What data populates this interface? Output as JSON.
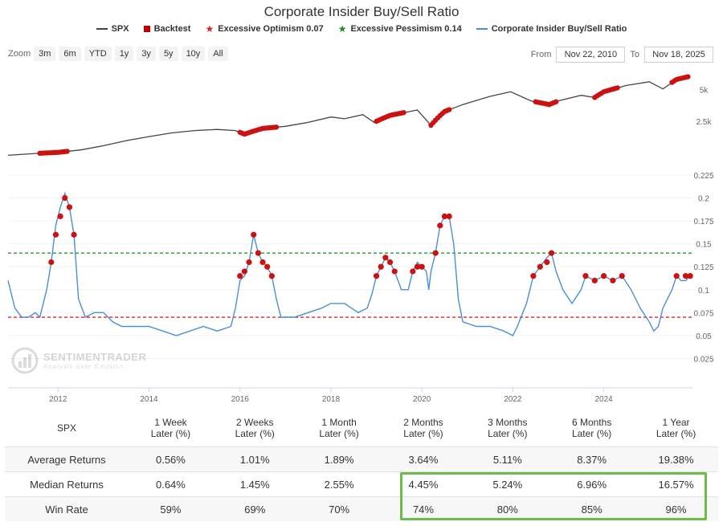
{
  "title": "Corporate Insider Buy/Sell Ratio",
  "legend": [
    {
      "label": "SPX",
      "kind": "line",
      "color": "#444444"
    },
    {
      "label": "Backtest",
      "kind": "square",
      "color": "#c00000"
    },
    {
      "label": "Excessive Optimism 0.07",
      "kind": "star",
      "color": "#e02020"
    },
    {
      "label": "Excessive Pessimism 0.14",
      "kind": "star",
      "color": "#1a8a1a"
    },
    {
      "label": "Corporate Insider Buy/Sell Ratio",
      "kind": "line",
      "color": "#4a8fd4"
    }
  ],
  "zoom": {
    "label": "Zoom",
    "buttons": [
      "3m",
      "6m",
      "YTD",
      "1y",
      "3y",
      "5y",
      "10y",
      "All"
    ]
  },
  "range": {
    "from_label": "From",
    "from_value": "Nov 22, 2010",
    "to_label": "To",
    "to_value": "Nov 18, 2025"
  },
  "watermark": {
    "title": "SENTIMENTRADER",
    "subtitle": "Analysis over Emotion"
  },
  "chart_data": {
    "type": "line",
    "x_range": [
      2010.9,
      2025.95
    ],
    "x_ticks": [
      2012,
      2014,
      2016,
      2018,
      2020,
      2022,
      2024
    ],
    "spx": {
      "name": "SPX",
      "axis_ticks": [
        {
          "value": 5000,
          "label": "5k"
        },
        {
          "value": 2500,
          "label": "2.5k"
        }
      ],
      "points": [
        [
          2010.9,
          1200
        ],
        [
          2011.5,
          1250
        ],
        [
          2012.0,
          1280
        ],
        [
          2012.5,
          1350
        ],
        [
          2013.0,
          1480
        ],
        [
          2013.5,
          1650
        ],
        [
          2014.0,
          1800
        ],
        [
          2014.5,
          1950
        ],
        [
          2015.0,
          2050
        ],
        [
          2015.5,
          2100
        ],
        [
          2015.9,
          2050
        ],
        [
          2016.1,
          1900
        ],
        [
          2016.5,
          2150
        ],
        [
          2017.0,
          2250
        ],
        [
          2017.5,
          2450
        ],
        [
          2018.0,
          2750
        ],
        [
          2018.3,
          2650
        ],
        [
          2018.7,
          2900
        ],
        [
          2018.95,
          2450
        ],
        [
          2019.3,
          2850
        ],
        [
          2019.9,
          3200
        ],
        [
          2020.2,
          2300
        ],
        [
          2020.5,
          3100
        ],
        [
          2020.9,
          3600
        ],
        [
          2021.5,
          4300
        ],
        [
          2021.95,
          4750
        ],
        [
          2022.4,
          3900
        ],
        [
          2022.8,
          3600
        ],
        [
          2023.0,
          3900
        ],
        [
          2023.5,
          4400
        ],
        [
          2023.8,
          4200
        ],
        [
          2024.0,
          4750
        ],
        [
          2024.5,
          5450
        ],
        [
          2025.0,
          5900
        ],
        [
          2025.3,
          5050
        ],
        [
          2025.6,
          6200
        ],
        [
          2025.9,
          6650
        ]
      ]
    },
    "backtest_spx_windows": [
      [
        2011.6,
        2012.2
      ],
      [
        2016.0,
        2016.8
      ],
      [
        2019.0,
        2019.6
      ],
      [
        2020.2,
        2020.6
      ],
      [
        2022.5,
        2022.95
      ],
      [
        2023.8,
        2024.3
      ],
      [
        2025.5,
        2025.85
      ]
    ],
    "ratio": {
      "name": "Corporate Insider Buy/Sell Ratio",
      "y_ticks": [
        0.025,
        0.05,
        0.075,
        0.1,
        0.125,
        0.15,
        0.175,
        0.2,
        0.225
      ],
      "points": [
        [
          2010.9,
          0.11
        ],
        [
          2011.05,
          0.08
        ],
        [
          2011.2,
          0.07
        ],
        [
          2011.35,
          0.07
        ],
        [
          2011.5,
          0.075
        ],
        [
          2011.6,
          0.07
        ],
        [
          2011.75,
          0.1
        ],
        [
          2011.85,
          0.13
        ],
        [
          2011.95,
          0.17
        ],
        [
          2012.05,
          0.19
        ],
        [
          2012.15,
          0.205
        ],
        [
          2012.25,
          0.19
        ],
        [
          2012.35,
          0.16
        ],
        [
          2012.45,
          0.09
        ],
        [
          2012.6,
          0.07
        ],
        [
          2012.8,
          0.075
        ],
        [
          2013.0,
          0.075
        ],
        [
          2013.2,
          0.065
        ],
        [
          2013.4,
          0.06
        ],
        [
          2013.7,
          0.06
        ],
        [
          2014.0,
          0.06
        ],
        [
          2014.3,
          0.055
        ],
        [
          2014.6,
          0.05
        ],
        [
          2014.9,
          0.055
        ],
        [
          2015.2,
          0.06
        ],
        [
          2015.5,
          0.055
        ],
        [
          2015.8,
          0.06
        ],
        [
          2015.9,
          0.08
        ],
        [
          2016.0,
          0.11
        ],
        [
          2016.1,
          0.115
        ],
        [
          2016.2,
          0.13
        ],
        [
          2016.3,
          0.16
        ],
        [
          2016.4,
          0.14
        ],
        [
          2016.5,
          0.13
        ],
        [
          2016.6,
          0.125
        ],
        [
          2016.7,
          0.115
        ],
        [
          2016.8,
          0.09
        ],
        [
          2016.9,
          0.07
        ],
        [
          2017.2,
          0.07
        ],
        [
          2017.5,
          0.075
        ],
        [
          2017.8,
          0.08
        ],
        [
          2018.0,
          0.085
        ],
        [
          2018.3,
          0.085
        ],
        [
          2018.6,
          0.075
        ],
        [
          2018.8,
          0.08
        ],
        [
          2018.9,
          0.095
        ],
        [
          2019.0,
          0.115
        ],
        [
          2019.1,
          0.125
        ],
        [
          2019.2,
          0.135
        ],
        [
          2019.3,
          0.13
        ],
        [
          2019.4,
          0.12
        ],
        [
          2019.55,
          0.1
        ],
        [
          2019.7,
          0.1
        ],
        [
          2019.8,
          0.12
        ],
        [
          2019.9,
          0.13
        ],
        [
          2020.0,
          0.125
        ],
        [
          2020.1,
          0.12
        ],
        [
          2020.15,
          0.1
        ],
        [
          2020.2,
          0.12
        ],
        [
          2020.3,
          0.14
        ],
        [
          2020.4,
          0.17
        ],
        [
          2020.5,
          0.18
        ],
        [
          2020.6,
          0.18
        ],
        [
          2020.7,
          0.15
        ],
        [
          2020.8,
          0.09
        ],
        [
          2020.9,
          0.065
        ],
        [
          2021.2,
          0.06
        ],
        [
          2021.5,
          0.06
        ],
        [
          2021.8,
          0.055
        ],
        [
          2022.0,
          0.05
        ],
        [
          2022.1,
          0.06
        ],
        [
          2022.3,
          0.085
        ],
        [
          2022.45,
          0.115
        ],
        [
          2022.6,
          0.125
        ],
        [
          2022.75,
          0.135
        ],
        [
          2022.85,
          0.14
        ],
        [
          2022.95,
          0.12
        ],
        [
          2023.1,
          0.1
        ],
        [
          2023.3,
          0.085
        ],
        [
          2023.5,
          0.1
        ],
        [
          2023.6,
          0.115
        ],
        [
          2023.8,
          0.11
        ],
        [
          2024.0,
          0.115
        ],
        [
          2024.2,
          0.11
        ],
        [
          2024.4,
          0.115
        ],
        [
          2024.6,
          0.1
        ],
        [
          2024.8,
          0.08
        ],
        [
          2025.0,
          0.065
        ],
        [
          2025.1,
          0.055
        ],
        [
          2025.2,
          0.06
        ],
        [
          2025.3,
          0.08
        ],
        [
          2025.5,
          0.1
        ],
        [
          2025.6,
          0.115
        ],
        [
          2025.7,
          0.11
        ],
        [
          2025.8,
          0.11
        ],
        [
          2025.9,
          0.115
        ]
      ]
    },
    "backtest_ratio": [
      [
        2011.85,
        0.13
      ],
      [
        2011.95,
        0.16
      ],
      [
        2012.05,
        0.18
      ],
      [
        2012.15,
        0.2
      ],
      [
        2012.25,
        0.19
      ],
      [
        2012.35,
        0.16
      ],
      [
        2016.0,
        0.115
      ],
      [
        2016.1,
        0.12
      ],
      [
        2016.2,
        0.13
      ],
      [
        2016.3,
        0.16
      ],
      [
        2016.4,
        0.14
      ],
      [
        2016.5,
        0.13
      ],
      [
        2016.6,
        0.125
      ],
      [
        2016.7,
        0.115
      ],
      [
        2019.0,
        0.115
      ],
      [
        2019.1,
        0.125
      ],
      [
        2019.2,
        0.135
      ],
      [
        2019.3,
        0.13
      ],
      [
        2019.4,
        0.12
      ],
      [
        2019.8,
        0.12
      ],
      [
        2019.9,
        0.125
      ],
      [
        2020.0,
        0.125
      ],
      [
        2020.3,
        0.14
      ],
      [
        2020.4,
        0.17
      ],
      [
        2020.5,
        0.18
      ],
      [
        2020.6,
        0.18
      ],
      [
        2022.45,
        0.115
      ],
      [
        2022.6,
        0.125
      ],
      [
        2022.75,
        0.13
      ],
      [
        2022.85,
        0.14
      ],
      [
        2023.6,
        0.115
      ],
      [
        2023.8,
        0.11
      ],
      [
        2024.0,
        0.115
      ],
      [
        2024.2,
        0.11
      ],
      [
        2024.4,
        0.115
      ],
      [
        2025.6,
        0.115
      ],
      [
        2025.8,
        0.115
      ],
      [
        2025.9,
        0.115
      ]
    ],
    "thresholds": [
      {
        "name": "Excessive Optimism",
        "value": 0.07,
        "color": "#e02020"
      },
      {
        "name": "Excessive Pessimism",
        "value": 0.14,
        "color": "#1a8a1a"
      }
    ]
  },
  "table": {
    "corner": "SPX",
    "columns": [
      [
        "1 Week",
        "Later (%)"
      ],
      [
        "2 Weeks",
        "Later (%)"
      ],
      [
        "1 Month",
        "Later (%)"
      ],
      [
        "2 Months",
        "Later (%)"
      ],
      [
        "3 Months",
        "Later (%)"
      ],
      [
        "6 Months",
        "Later (%)"
      ],
      [
        "1 Year",
        "Later (%)"
      ]
    ],
    "rows": [
      {
        "label": "Average Returns",
        "values": [
          "0.56%",
          "1.01%",
          "1.89%",
          "3.64%",
          "5.11%",
          "8.37%",
          "19.38%"
        ]
      },
      {
        "label": "Median Returns",
        "values": [
          "0.64%",
          "1.45%",
          "2.55%",
          "4.45%",
          "5.24%",
          "6.96%",
          "16.57%"
        ]
      },
      {
        "label": "Win Rate",
        "values": [
          "59%",
          "69%",
          "70%",
          "74%",
          "80%",
          "85%",
          "96%"
        ]
      }
    ]
  }
}
